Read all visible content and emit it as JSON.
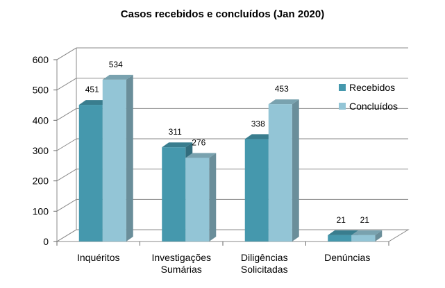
{
  "chart_data": {
    "type": "bar",
    "title": "Casos recebidos e concluídos (Jan 2020)",
    "xlabel": "",
    "ylabel": "",
    "categories": [
      [
        "Inquéritos"
      ],
      [
        "Investigações",
        "Sumárias"
      ],
      [
        "Diligências",
        "Solicitadas"
      ],
      [
        "Denúncias"
      ]
    ],
    "series": [
      {
        "name": "Recebidos",
        "values": [
          451,
          311,
          338,
          21
        ],
        "color": "#4598AD"
      },
      {
        "name": "Concluídos",
        "values": [
          534,
          276,
          453,
          21
        ],
        "color": "#93C5D6"
      }
    ],
    "ylim": [
      0,
      600
    ],
    "yticks": [
      0,
      100,
      200,
      300,
      400,
      500,
      600
    ],
    "grid": true,
    "legend": "right",
    "data_labels": true,
    "style": "3d-clustered-column"
  }
}
